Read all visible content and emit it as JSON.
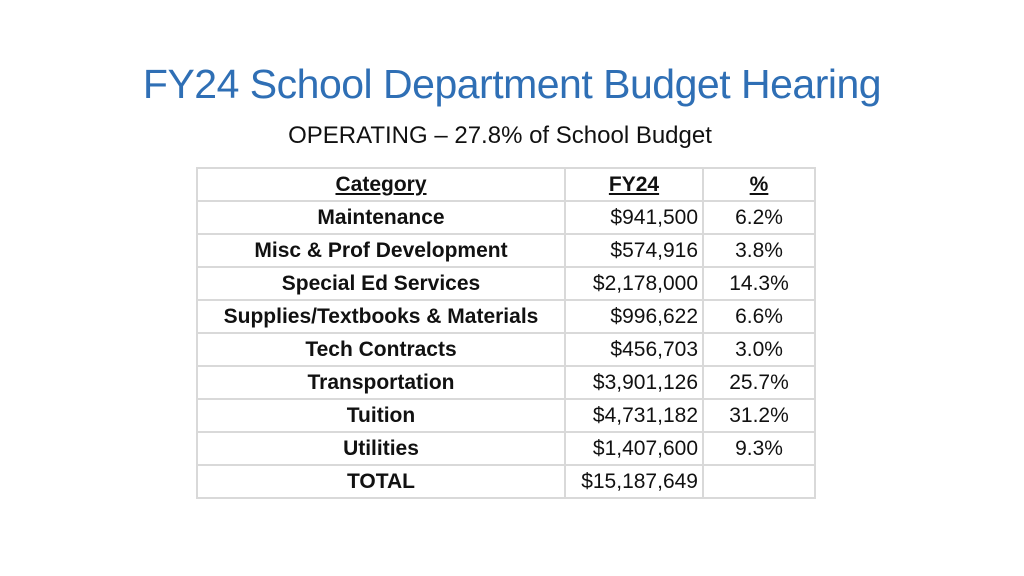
{
  "title": "FY24 School Department Budget Hearing",
  "subtitle": "OPERATING – 27.8% of School Budget",
  "table": {
    "headers": [
      "Category",
      "FY24",
      "%"
    ],
    "rows": [
      {
        "category": "Maintenance",
        "fy24": "$941,500",
        "pct": "6.2%"
      },
      {
        "category": "Misc & Prof Development",
        "fy24": "$574,916",
        "pct": "3.8%"
      },
      {
        "category": "Special Ed Services",
        "fy24": "$2,178,000",
        "pct": "14.3%"
      },
      {
        "category": "Supplies/Textbooks & Materials",
        "fy24": "$996,622",
        "pct": "6.6%"
      },
      {
        "category": "Tech Contracts",
        "fy24": "$456,703",
        "pct": "3.0%"
      },
      {
        "category": "Transportation",
        "fy24": "$3,901,126",
        "pct": "25.7%"
      },
      {
        "category": "Tuition",
        "fy24": "$4,731,182",
        "pct": "31.2%"
      },
      {
        "category": "Utilities",
        "fy24": "$1,407,600",
        "pct": "9.3%"
      },
      {
        "category": "TOTAL",
        "fy24": "$15,187,649",
        "pct": ""
      }
    ]
  },
  "colors": {
    "title": "#2f6fb5",
    "grid": "#d9d9d9",
    "text": "#111111"
  }
}
